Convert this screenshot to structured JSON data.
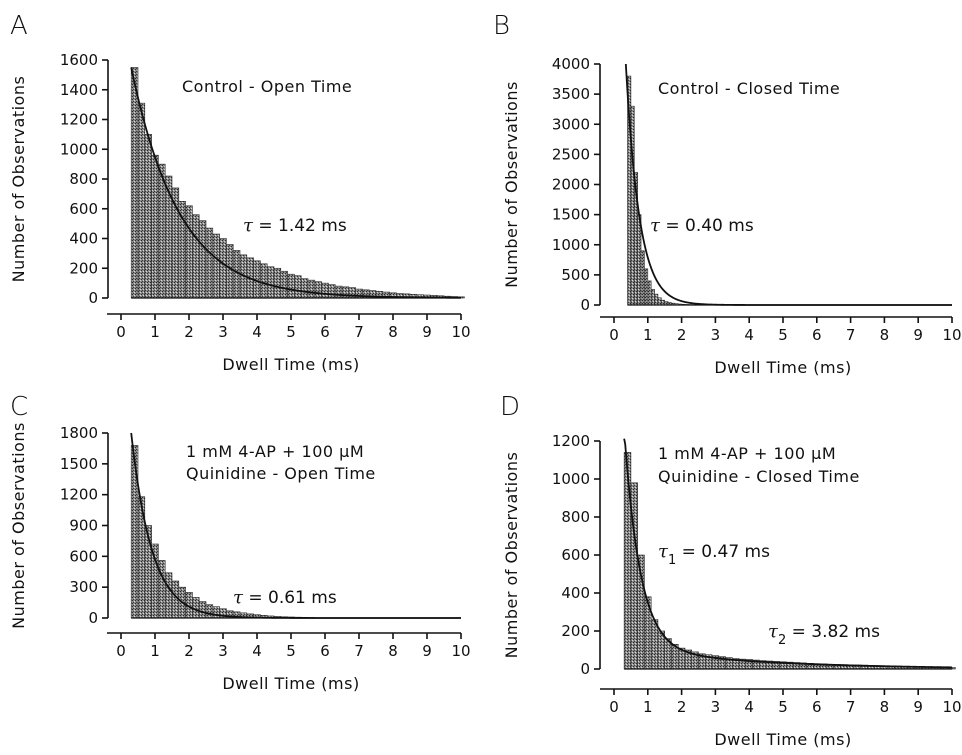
{
  "chart_data": [
    {
      "type": "bar",
      "panel": "A",
      "annotation": [
        "Control  -  Open Time"
      ],
      "tau": [
        {
          "symbol": "τ",
          "sub": "",
          "value": " =  1.42 ms"
        }
      ],
      "xlabel": "Dwell Time (ms)",
      "ylabel": "Number of Observations",
      "xlim": [
        0,
        10
      ],
      "ylim": [
        0,
        1600
      ],
      "xticks": [
        0,
        1,
        2,
        3,
        4,
        5,
        6,
        7,
        8,
        9,
        10
      ],
      "yticks": [
        0,
        200,
        400,
        600,
        800,
        1000,
        1200,
        1400,
        1600
      ],
      "bin_width": 0.2,
      "bin_start": 0.3,
      "values": [
        1550,
        1310,
        1100,
        960,
        900,
        820,
        740,
        650,
        620,
        560,
        520,
        470,
        430,
        400,
        360,
        320,
        290,
        270,
        250,
        230,
        210,
        200,
        180,
        160,
        150,
        130,
        120,
        110,
        100,
        90,
        80,
        75,
        70,
        60,
        55,
        50,
        45,
        40,
        35,
        30,
        28,
        25,
        22,
        20,
        18,
        15,
        12,
        10,
        8
      ],
      "fit": [
        {
          "amplitude": 1550,
          "tau": 1.42,
          "start": 0.3
        }
      ]
    },
    {
      "type": "bar",
      "panel": "B",
      "annotation": [
        "Control  -  Closed Time"
      ],
      "tau": [
        {
          "symbol": "τ",
          "sub": "",
          "value": " =  0.40 ms"
        }
      ],
      "xlabel": "Dwell Time (ms)",
      "ylabel": "Number of Observations",
      "xlim": [
        0,
        10
      ],
      "ylim": [
        0,
        4000
      ],
      "xticks": [
        0,
        1,
        2,
        3,
        4,
        5,
        6,
        7,
        8,
        9,
        10
      ],
      "yticks": [
        0,
        500,
        1000,
        1500,
        2000,
        2500,
        3000,
        3500,
        4000
      ],
      "bin_width": 0.1,
      "bin_start": 0.4,
      "values": [
        3800,
        3300,
        2200,
        1500,
        900,
        600,
        400,
        260,
        180,
        120,
        80,
        55,
        40,
        30,
        22,
        16,
        12,
        9,
        7,
        5
      ],
      "fit": [
        {
          "amplitude": 4000,
          "tau": 0.4,
          "start": 0.35
        }
      ]
    },
    {
      "type": "bar",
      "panel": "C",
      "annotation": [
        "1 mM 4-AP + 100 μM",
        "Quinidine  -  Open Time"
      ],
      "tau": [
        {
          "symbol": "τ",
          "sub": "",
          "value": " =  0.61 ms"
        }
      ],
      "xlabel": "Dwell Time (ms)",
      "ylabel": "Number of Observations",
      "xlim": [
        0,
        10
      ],
      "ylim": [
        0,
        1800
      ],
      "xticks": [
        0,
        1,
        2,
        3,
        4,
        5,
        6,
        7,
        8,
        9,
        10
      ],
      "yticks": [
        0,
        300,
        600,
        900,
        1200,
        1500,
        1800
      ],
      "bin_width": 0.2,
      "bin_start": 0.3,
      "values": [
        1680,
        1180,
        900,
        720,
        560,
        440,
        360,
        300,
        250,
        200,
        160,
        130,
        110,
        90,
        70,
        60,
        50,
        40,
        32,
        26,
        20,
        16,
        12,
        10,
        8,
        6,
        5
      ],
      "fit": [
        {
          "amplitude": 1800,
          "tau": 0.61,
          "start": 0.3
        }
      ]
    },
    {
      "type": "bar",
      "panel": "D",
      "annotation": [
        "1 mM 4-AP + 100 μM",
        "Quinidine  -  Closed Time"
      ],
      "tau": [
        {
          "symbol": "τ",
          "sub": "1",
          "value": " =  0.47 ms"
        },
        {
          "symbol": "τ",
          "sub": "2",
          "value": " =  3.82 ms"
        }
      ],
      "xlabel": "Dwell Time (ms)",
      "ylabel": "Number of Observations",
      "xlim": [
        0,
        10
      ],
      "ylim": [
        0,
        1200
      ],
      "xticks": [
        0,
        1,
        2,
        3,
        4,
        5,
        6,
        7,
        8,
        9,
        10
      ],
      "yticks": [
        0,
        200,
        400,
        600,
        800,
        1000,
        1200
      ],
      "bin_width": 0.2,
      "bin_start": 0.3,
      "values": [
        1140,
        980,
        600,
        380,
        260,
        200,
        160,
        130,
        110,
        100,
        90,
        80,
        75,
        70,
        65,
        60,
        55,
        52,
        50,
        47,
        44,
        42,
        40,
        38,
        36,
        34,
        32,
        30,
        28,
        27,
        25,
        24,
        23,
        22,
        21,
        20,
        19,
        18,
        17,
        16,
        15,
        14,
        13,
        12,
        11,
        10,
        9,
        9,
        8
      ],
      "fit": [
        {
          "amplitude": 1150,
          "tau": 0.47,
          "start": 0.3
        },
        {
          "amplitude": 110,
          "tau": 3.82,
          "start": 0.3
        }
      ]
    }
  ]
}
